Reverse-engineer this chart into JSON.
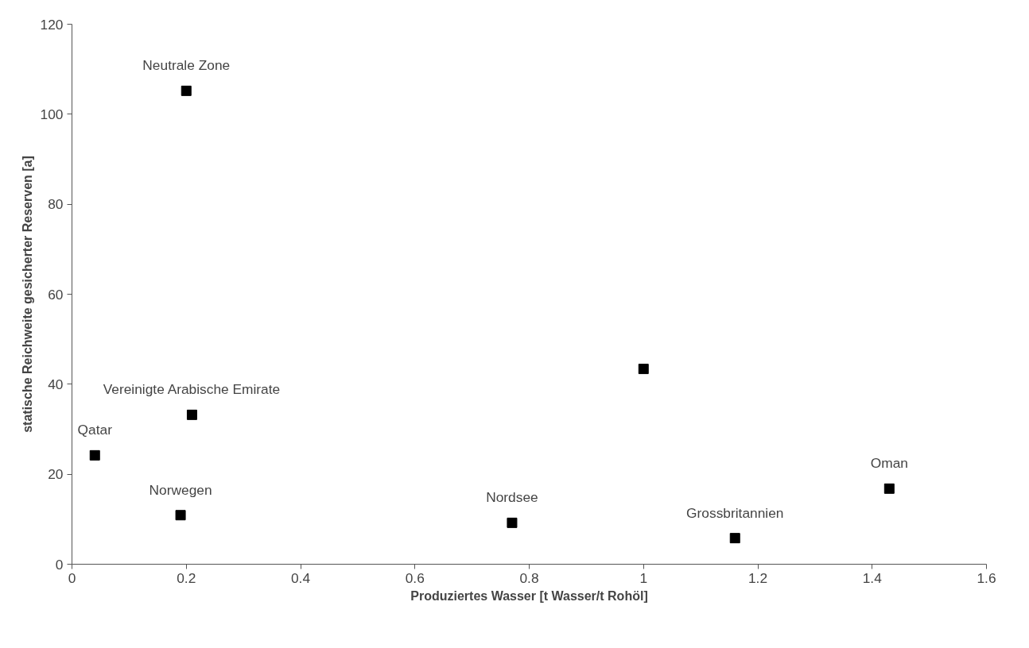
{
  "chart_data": {
    "type": "scatter",
    "xlabel": "Produziertes Wasser [t Wasser/t Rohöl]",
    "ylabel": "statische Reichweite gesicherter Reserven [a]",
    "x": [
      0.2,
      0.21,
      0.04,
      0.19,
      0.77,
      1.0,
      1.16,
      1.43
    ],
    "series": [
      {
        "color": "#000000",
        "values": [
          105.2,
          33.2,
          24.2,
          10.9,
          9.2,
          43.4,
          5.8,
          16.8
        ]
      }
    ],
    "xlim": [
      0,
      1.6
    ],
    "xticks": [
      0,
      0.2,
      0.4,
      0.6,
      0.8,
      1,
      1.2,
      1.4,
      1.6
    ],
    "ylim": [
      0,
      120
    ],
    "yticks": [
      0,
      20,
      40,
      60,
      80,
      100,
      120
    ],
    "grid": false,
    "marker": "square",
    "annotations": [
      {
        "text": "Neutrale Zone",
        "x": 0.2,
        "y": 105.2
      },
      {
        "text": "Vereinigte Arabische Emirate",
        "x": 0.21,
        "y": 33.2
      },
      {
        "text": "Qatar",
        "x": 0.04,
        "y": 24.2
      },
      {
        "text": "Norwegen",
        "x": 0.19,
        "y": 10.9
      },
      {
        "text": "Nordsee",
        "x": 0.77,
        "y": 9.2
      },
      {
        "text": "Grossbritannien",
        "x": 1.16,
        "y": 5.8
      },
      {
        "text": "Oman",
        "x": 1.43,
        "y": 16.8
      }
    ]
  }
}
